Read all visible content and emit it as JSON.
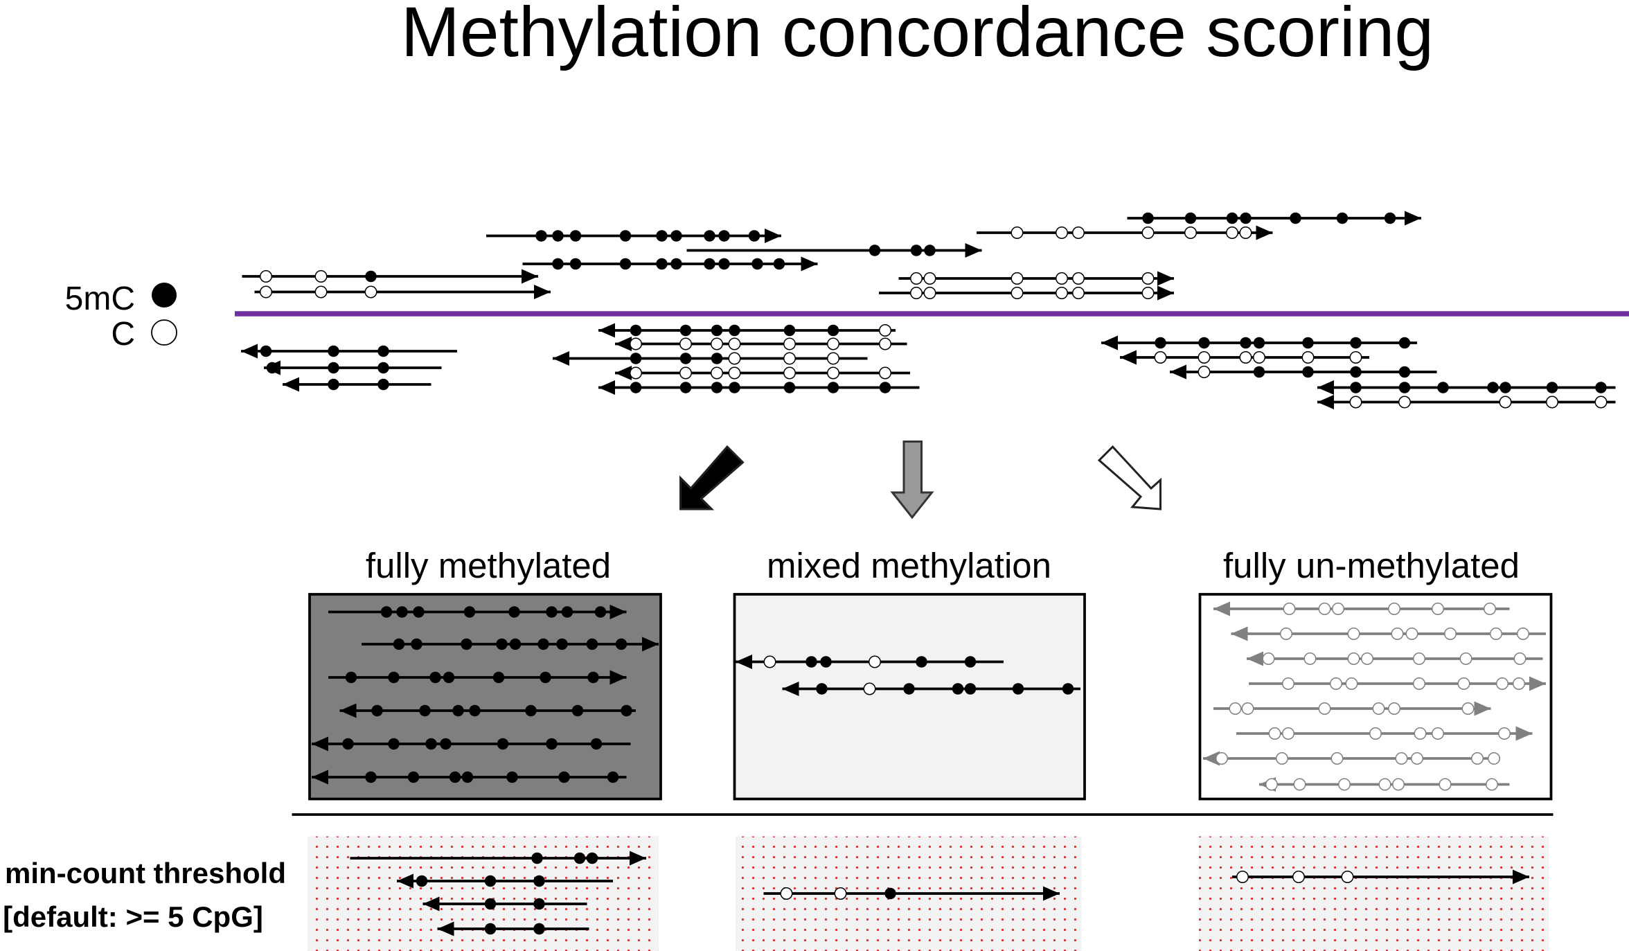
{
  "title": "Methylation concordance scoring",
  "legend": {
    "methylated": "5mC",
    "unmethylated": "C"
  },
  "panels": [
    {
      "label": "fully methylated"
    },
    {
      "label": "mixed methylation"
    },
    {
      "label": "fully un-methylated"
    }
  ],
  "threshold": {
    "line1": "min-count threshold",
    "line2": "[default: >= 5 CpG]"
  }
}
